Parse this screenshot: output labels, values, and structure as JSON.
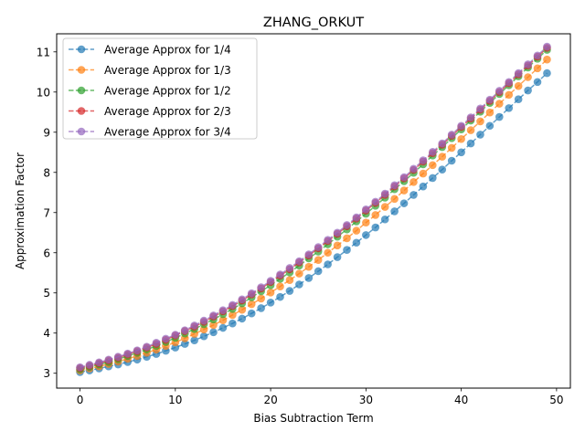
{
  "chart_data": {
    "type": "line",
    "title": "ZHANG_ORKUT",
    "xlabel": "Bias Subtraction Term",
    "ylabel": "Approximation Factor",
    "xlim": [
      -2.45,
      51.45
    ],
    "ylim": [
      2.63,
      11.45
    ],
    "x_ticks": [
      0,
      10,
      20,
      30,
      40,
      50
    ],
    "y_ticks": [
      3,
      4,
      5,
      6,
      7,
      8,
      9,
      10,
      11
    ],
    "grid": false,
    "legend_position": "upper-left",
    "marker": "circle",
    "line_style": "dashed",
    "x": [
      0,
      1,
      2,
      3,
      4,
      5,
      6,
      7,
      8,
      9,
      10,
      11,
      12,
      13,
      14,
      15,
      16,
      17,
      18,
      19,
      20,
      21,
      22,
      23,
      24,
      25,
      26,
      27,
      28,
      29,
      30,
      31,
      32,
      33,
      34,
      35,
      36,
      37,
      38,
      39,
      40,
      41,
      42,
      43,
      44,
      45,
      46,
      47,
      48,
      49
    ],
    "series": [
      {
        "name": "Average Approx for 1/4",
        "color": "#1f77b4",
        "values": [
          3.03,
          3.07,
          3.12,
          3.17,
          3.22,
          3.28,
          3.34,
          3.41,
          3.48,
          3.56,
          3.64,
          3.73,
          3.82,
          3.92,
          4.02,
          4.13,
          4.24,
          4.36,
          4.49,
          4.62,
          4.76,
          4.9,
          5.05,
          5.21,
          5.37,
          5.54,
          5.71,
          5.89,
          6.07,
          6.25,
          6.44,
          6.63,
          6.83,
          7.03,
          7.23,
          7.44,
          7.65,
          7.86,
          8.07,
          8.29,
          8.5,
          8.72,
          8.94,
          9.16,
          9.38,
          9.6,
          9.82,
          10.04,
          10.25,
          10.47
        ]
      },
      {
        "name": "Average Approx for 1/3",
        "color": "#ff7f0e",
        "values": [
          3.07,
          3.12,
          3.17,
          3.23,
          3.29,
          3.36,
          3.43,
          3.51,
          3.59,
          3.68,
          3.77,
          3.87,
          3.98,
          4.09,
          4.2,
          4.32,
          4.45,
          4.58,
          4.72,
          4.86,
          5.01,
          5.16,
          5.32,
          5.48,
          5.65,
          5.82,
          6.0,
          6.18,
          6.36,
          6.55,
          6.75,
          6.94,
          7.14,
          7.34,
          7.55,
          7.76,
          7.97,
          8.18,
          8.39,
          8.61,
          8.83,
          9.05,
          9.27,
          9.49,
          9.71,
          9.93,
          10.15,
          10.37,
          10.59,
          10.81
        ]
      },
      {
        "name": "Average Approx for 1/2",
        "color": "#2ca02c",
        "values": [
          3.1,
          3.16,
          3.22,
          3.28,
          3.35,
          3.43,
          3.51,
          3.59,
          3.68,
          3.78,
          3.88,
          3.99,
          4.1,
          4.22,
          4.34,
          4.47,
          4.6,
          4.74,
          4.89,
          5.04,
          5.19,
          5.35,
          5.51,
          5.68,
          5.86,
          6.03,
          6.21,
          6.4,
          6.58,
          6.78,
          6.97,
          7.17,
          7.37,
          7.58,
          7.78,
          7.99,
          8.2,
          8.42,
          8.63,
          8.85,
          9.07,
          9.29,
          9.51,
          9.73,
          9.95,
          10.17,
          10.39,
          10.61,
          10.83,
          11.05
        ]
      },
      {
        "name": "Average Approx for 2/3",
        "color": "#d62728",
        "values": [
          3.13,
          3.19,
          3.25,
          3.32,
          3.39,
          3.47,
          3.55,
          3.64,
          3.73,
          3.83,
          3.94,
          4.05,
          4.16,
          4.28,
          4.41,
          4.54,
          4.67,
          4.81,
          4.96,
          5.11,
          5.27,
          5.43,
          5.59,
          5.76,
          5.93,
          6.11,
          6.29,
          6.47,
          6.66,
          6.85,
          7.05,
          7.24,
          7.44,
          7.65,
          7.85,
          8.06,
          8.27,
          8.48,
          8.69,
          8.91,
          9.13,
          9.34,
          9.56,
          9.78,
          10.0,
          10.22,
          10.44,
          10.66,
          10.88,
          11.1
        ]
      },
      {
        "name": "Average Approx for 3/4",
        "color": "#9467bd",
        "values": [
          3.15,
          3.21,
          3.27,
          3.34,
          3.41,
          3.49,
          3.57,
          3.66,
          3.76,
          3.86,
          3.96,
          4.07,
          4.19,
          4.31,
          4.44,
          4.57,
          4.7,
          4.84,
          4.99,
          5.14,
          5.3,
          5.46,
          5.62,
          5.79,
          5.96,
          6.14,
          6.32,
          6.5,
          6.69,
          6.88,
          7.08,
          7.27,
          7.47,
          7.68,
          7.88,
          8.09,
          8.3,
          8.51,
          8.72,
          8.94,
          9.16,
          9.37,
          9.59,
          9.81,
          10.03,
          10.25,
          10.47,
          10.69,
          10.91,
          11.13
        ]
      }
    ]
  }
}
